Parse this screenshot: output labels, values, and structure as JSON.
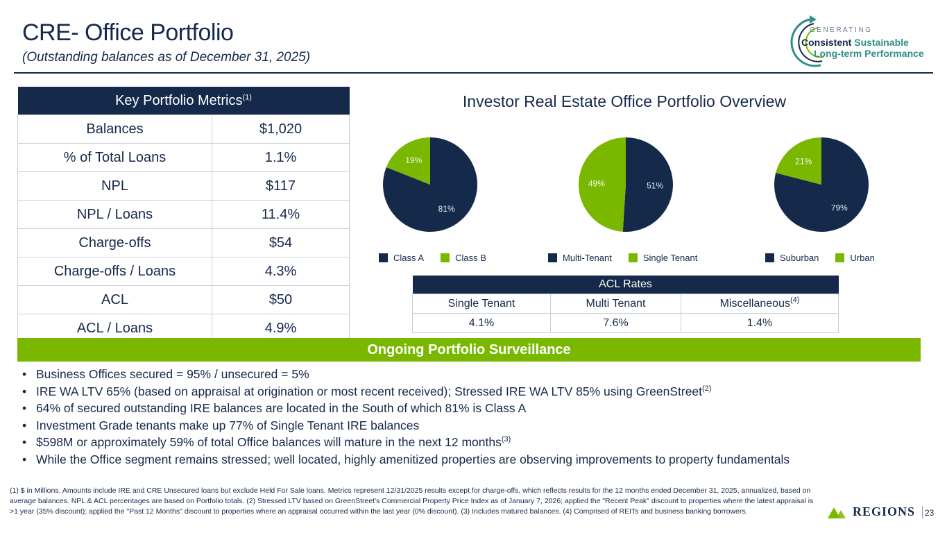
{
  "header": {
    "title": "CRE- Office Portfolio",
    "subtitle": "(Outstanding balances as of December 31, 2025)"
  },
  "logo": {
    "generating": "GENERATING",
    "consistent": "Consistent",
    "sustainable": "Sustainable",
    "longterm": "Long-term Performance"
  },
  "metrics": {
    "header": "Key Portfolio Metrics",
    "header_note": "(1)",
    "rows": [
      {
        "label": "Balances",
        "value": "$1,020"
      },
      {
        "label": "% of Total Loans",
        "value": "1.1%"
      },
      {
        "label": "NPL",
        "value": "$117"
      },
      {
        "label": "NPL / Loans",
        "value": "11.4%"
      },
      {
        "label": "Charge-offs",
        "value": "$54"
      },
      {
        "label": "Charge-offs / Loans",
        "value": "4.3%"
      },
      {
        "label": "ACL",
        "value": "$50"
      },
      {
        "label": "ACL / Loans",
        "value": "4.9%"
      }
    ]
  },
  "overview_title": "Investor Real Estate Office Portfolio Overview",
  "colors": {
    "navy": "#15294a",
    "green": "#7ab800"
  },
  "chart_data": [
    {
      "type": "pie",
      "title": "",
      "labels": [
        "Class A",
        "Class B"
      ],
      "values": [
        81,
        19
      ],
      "value_labels": [
        "81%",
        "19%"
      ]
    },
    {
      "type": "pie",
      "title": "",
      "labels": [
        "Multi-Tenant",
        "Single Tenant"
      ],
      "values": [
        51,
        49
      ],
      "value_labels": [
        "51%",
        "49%"
      ]
    },
    {
      "type": "pie",
      "title": "",
      "labels": [
        "Suburban",
        "Urban"
      ],
      "values": [
        79,
        21
      ],
      "value_labels": [
        "79%",
        "21%"
      ]
    }
  ],
  "acl_rates": {
    "header": "ACL Rates",
    "columns": [
      "Single Tenant",
      "Multi Tenant",
      "Miscellaneous"
    ],
    "misc_note": "(4)",
    "values": [
      "4.1%",
      "7.6%",
      "1.4%"
    ]
  },
  "surveillance": {
    "banner": "Ongoing Portfolio Surveillance",
    "bullets": [
      {
        "text": "Business Offices secured = 95% / unsecured = 5%",
        "note": ""
      },
      {
        "text": "IRE WA LTV 65% (based on appraisal at origination or most recent received); Stressed IRE WA LTV 85% using GreenStreet",
        "note": "(2)"
      },
      {
        "text": "64% of secured outstanding IRE balances are located in the South of which 81% is Class A",
        "note": ""
      },
      {
        "text": "Investment Grade tenants make up 77% of Single Tenant IRE balances",
        "note": ""
      },
      {
        "text": "$598M or approximately 59% of total Office balances will mature in the next 12 months",
        "note": "(3)"
      },
      {
        "text": "While the Office segment remains stressed; well located, highly amenitized properties are observing improvements to property fundamentals",
        "note": ""
      }
    ]
  },
  "footnote": "(1) $ in Millions. Amounts include IRE and CRE Unsecured loans but exclude Held For Sale loans. Metrics represent 12/31/2025 results except for charge-offs, which reflects results for the 12 months ended December 31, 2025, annualized,  based on average balances.  NPL & ACL percentages are based on Portfolio totals.  (2) Stressed LTV based on GreenStreet's Commercial Property Price Index as of January 7, 2026; applied the \"Recent Peak\" discount to properties where the latest appraisal is >1 year (35% discount); applied the \"Past 12 Months\" discount to properties where an appraisal occurred within the last year (0% discount). (3) Includes matured balances. (4) Comprised of REITs and business banking borrowers.",
  "brand": "Regions",
  "page_number": "23"
}
